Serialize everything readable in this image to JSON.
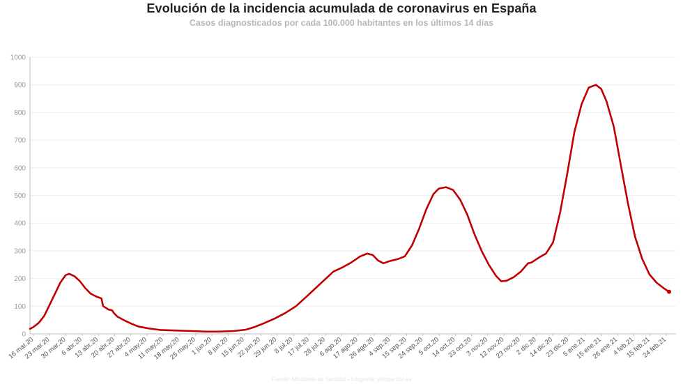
{
  "header": {
    "title": "Evolución de la incidencia acumulada de coronavirus en España",
    "subtitle": "Casos diagnosticados por cada 100.000 habitantes en los últimos 14 días"
  },
  "footer": {
    "source": "Fuente: Ministerio de Sanidad • Infografía: elimparcial.es"
  },
  "colors": {
    "line": "#c00000",
    "grid": "#eeeeee",
    "axis": "#bbbbbb"
  },
  "chart_data": {
    "type": "line",
    "title": "Evolución de la incidencia acumulada de coronavirus en España",
    "subtitle": "Casos diagnosticados por cada 100.000 habitantes en los últimos 14 días",
    "xlabel": "",
    "ylabel": "",
    "ylim": [
      0,
      1000
    ],
    "yticks": [
      0,
      100,
      200,
      300,
      400,
      500,
      600,
      700,
      800,
      900,
      1000
    ],
    "grid": true,
    "x_tick_labels": [
      "16 mar.20",
      "23 mar.20",
      "30 mar.20",
      "6 abr.20",
      "13 abr.20",
      "20 abr.20",
      "27 abr.20",
      "4 may.20",
      "11 may.20",
      "18 may.20",
      "25 may.20",
      "1 jun.20",
      "8 jun.20",
      "15 jun.20",
      "22 jun.20",
      "29 jun.20",
      "8 jul.20",
      "17 jul.20",
      "28 jul.20",
      "6 ago.20",
      "17 ago.20",
      "26 ago.20",
      "4 sep.20",
      "15 sep.20",
      "24 sep.20",
      "5 oct.20",
      "14 oct.20",
      "23 oct.20",
      "3 nov.20",
      "12 nov.20",
      "23 nov.20",
      "2 dic.20",
      "14 dic.20",
      "23 dic.20",
      "5 ene.21",
      "15 ene.21",
      "26 ene.21",
      "4 feb.21",
      "15 feb.21",
      "24 feb.21"
    ],
    "series": [
      {
        "name": "",
        "points": [
          [
            "2020-03-16",
            18
          ],
          [
            "2020-03-18",
            25
          ],
          [
            "2020-03-21",
            40
          ],
          [
            "2020-03-24",
            65
          ],
          [
            "2020-03-27",
            105
          ],
          [
            "2020-03-30",
            145
          ],
          [
            "2020-04-02",
            185
          ],
          [
            "2020-04-05",
            212
          ],
          [
            "2020-04-07",
            217
          ],
          [
            "2020-04-10",
            208
          ],
          [
            "2020-04-13",
            190
          ],
          [
            "2020-04-16",
            165
          ],
          [
            "2020-04-19",
            145
          ],
          [
            "2020-04-22",
            135
          ],
          [
            "2020-04-25",
            128
          ],
          [
            "2020-04-26",
            100
          ],
          [
            "2020-04-29",
            88
          ],
          [
            "2020-05-01",
            85
          ],
          [
            "2020-05-02",
            75
          ],
          [
            "2020-05-04",
            62
          ],
          [
            "2020-05-08",
            48
          ],
          [
            "2020-05-12",
            36
          ],
          [
            "2020-05-16",
            26
          ],
          [
            "2020-05-22",
            19
          ],
          [
            "2020-05-28",
            14
          ],
          [
            "2020-06-05",
            12
          ],
          [
            "2020-06-15",
            10
          ],
          [
            "2020-06-22",
            8
          ],
          [
            "2020-06-30",
            8
          ],
          [
            "2020-07-08",
            10
          ],
          [
            "2020-07-15",
            15
          ],
          [
            "2020-07-20",
            25
          ],
          [
            "2020-07-25",
            38
          ],
          [
            "2020-07-31",
            55
          ],
          [
            "2020-08-06",
            75
          ],
          [
            "2020-08-12",
            100
          ],
          [
            "2020-08-18",
            135
          ],
          [
            "2020-08-23",
            165
          ],
          [
            "2020-08-28",
            195
          ],
          [
            "2020-09-02",
            225
          ],
          [
            "2020-09-07",
            240
          ],
          [
            "2020-09-12",
            258
          ],
          [
            "2020-09-17",
            280
          ],
          [
            "2020-09-21",
            290
          ],
          [
            "2020-09-24",
            285
          ],
          [
            "2020-09-27",
            265
          ],
          [
            "2020-09-30",
            255
          ],
          [
            "2020-10-03",
            262
          ],
          [
            "2020-10-08",
            270
          ],
          [
            "2020-10-12",
            280
          ],
          [
            "2020-10-16",
            320
          ],
          [
            "2020-10-20",
            380
          ],
          [
            "2020-10-24",
            450
          ],
          [
            "2020-10-28",
            505
          ],
          [
            "2020-10-31",
            525
          ],
          [
            "2020-11-04",
            530
          ],
          [
            "2020-11-08",
            520
          ],
          [
            "2020-11-12",
            485
          ],
          [
            "2020-11-16",
            430
          ],
          [
            "2020-11-20",
            360
          ],
          [
            "2020-11-24",
            300
          ],
          [
            "2020-11-28",
            250
          ],
          [
            "2020-12-02",
            210
          ],
          [
            "2020-12-05",
            190
          ],
          [
            "2020-12-08",
            192
          ],
          [
            "2020-12-12",
            205
          ],
          [
            "2020-12-16",
            225
          ],
          [
            "2020-12-20",
            255
          ],
          [
            "2020-12-22",
            258
          ],
          [
            "2020-12-26",
            275
          ],
          [
            "2020-12-30",
            290
          ],
          [
            "2021-01-03",
            330
          ],
          [
            "2021-01-07",
            440
          ],
          [
            "2021-01-11",
            580
          ],
          [
            "2021-01-15",
            730
          ],
          [
            "2021-01-19",
            830
          ],
          [
            "2021-01-23",
            890
          ],
          [
            "2021-01-27",
            900
          ],
          [
            "2021-01-30",
            885
          ],
          [
            "2021-02-02",
            840
          ],
          [
            "2021-02-06",
            750
          ],
          [
            "2021-02-10",
            610
          ],
          [
            "2021-02-14",
            470
          ],
          [
            "2021-02-18",
            350
          ],
          [
            "2021-02-22",
            270
          ],
          [
            "2021-02-26",
            215
          ],
          [
            "2021-03-02",
            185
          ],
          [
            "2021-03-06",
            165
          ],
          [
            "2021-03-09",
            152
          ]
        ]
      }
    ]
  }
}
